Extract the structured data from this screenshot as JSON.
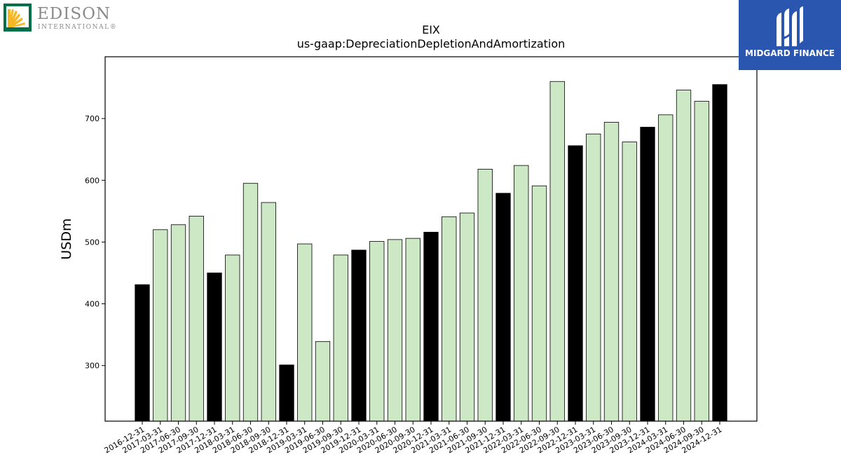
{
  "logos": {
    "left": {
      "name": "EDISON",
      "subtitle": "INTERNATIONAL®"
    },
    "right": {
      "name": "MIDGARD FINANCE"
    }
  },
  "colors": {
    "annual_bar": "#000000",
    "quarter_bar": "#cde8c5",
    "bar_edge": "#000000",
    "edison_green": "#00704a",
    "edison_yellow": "#f5b824",
    "midgard_blue": "#2b56b0"
  },
  "chart_data": {
    "type": "bar",
    "title": "EIX",
    "subtitle": "us-gaap:DepreciationDepletionAndAmortization",
    "xlabel": "",
    "ylabel": "USDm",
    "ylim": [
      210,
      800
    ],
    "yticks": [
      300,
      400,
      500,
      600,
      700
    ],
    "grid": false,
    "legend": "none",
    "categories": [
      "2016-12-31",
      "2017-03-31",
      "2017-06-30",
      "2017-09-30",
      "2017-12-31",
      "2018-03-31",
      "2018-06-30",
      "2018-09-30",
      "2018-12-31",
      "2019-03-31",
      "2019-06-30",
      "2019-09-30",
      "2019-12-31",
      "2020-03-31",
      "2020-06-30",
      "2020-09-30",
      "2020-12-31",
      "2021-03-31",
      "2021-06-30",
      "2021-09-30",
      "2021-12-31",
      "2022-03-31",
      "2022-06-30",
      "2022-09-30",
      "2022-12-31",
      "2023-03-31",
      "2023-06-30",
      "2023-09-30",
      "2023-12-31",
      "2024-03-31",
      "2024-06-30",
      "2024-09-30",
      "2024-12-31"
    ],
    "values": [
      431,
      520,
      528,
      542,
      450,
      479,
      595,
      564,
      301,
      497,
      339,
      479,
      487,
      501,
      504,
      506,
      516,
      541,
      547,
      618,
      579,
      624,
      591,
      760,
      656,
      675,
      694,
      662,
      686,
      706,
      746,
      728,
      755
    ],
    "annual": [
      true,
      false,
      false,
      false,
      true,
      false,
      false,
      false,
      true,
      false,
      false,
      false,
      true,
      false,
      false,
      false,
      true,
      false,
      false,
      false,
      true,
      false,
      false,
      false,
      true,
      false,
      false,
      false,
      true,
      false,
      false,
      false,
      true
    ]
  }
}
